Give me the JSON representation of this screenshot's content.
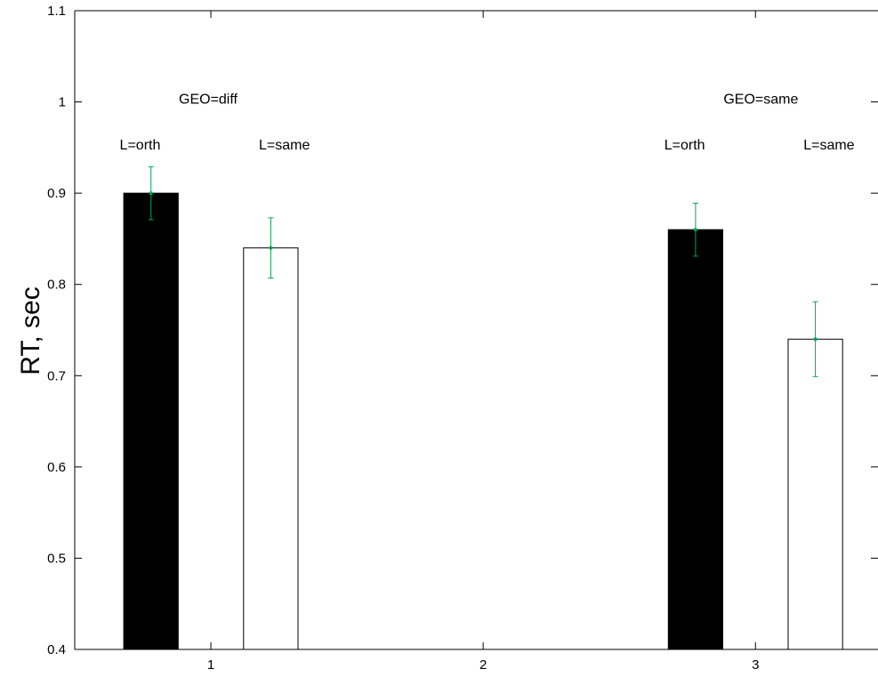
{
  "chart_data": {
    "type": "bar",
    "title": "",
    "xlabel": "",
    "ylabel": "RT, sec",
    "xlim": [
      0.5,
      3.45
    ],
    "ylim": [
      0.4,
      1.1
    ],
    "xticks": [
      1,
      2,
      3
    ],
    "yticks": [
      0.4,
      0.5,
      0.6,
      0.7,
      0.8,
      0.9,
      1,
      1.1
    ],
    "grid": false,
    "bars": [
      {
        "x": 0.78,
        "width": 0.2,
        "value": 0.9,
        "error": 0.029,
        "fill": "#000000"
      },
      {
        "x": 1.22,
        "width": 0.2,
        "value": 0.84,
        "error": 0.033,
        "fill": "#ffffff"
      },
      {
        "x": 2.78,
        "width": 0.2,
        "value": 0.86,
        "error": 0.029,
        "fill": "#000000"
      },
      {
        "x": 3.22,
        "width": 0.2,
        "value": 0.74,
        "error": 0.041,
        "fill": "#ffffff"
      }
    ],
    "annotations": [
      {
        "text": "GEO=diff",
        "x": 0.99,
        "y": 0.998
      },
      {
        "text": "L=orth",
        "x": 0.74,
        "y": 0.948
      },
      {
        "text": "L=same",
        "x": 1.27,
        "y": 0.948
      },
      {
        "text": "GEO=same",
        "x": 3.02,
        "y": 0.998
      },
      {
        "text": "L=orth",
        "x": 2.74,
        "y": 0.948
      },
      {
        "text": "L=same",
        "x": 3.27,
        "y": 0.948
      }
    ],
    "colors": {
      "error_bar": "#00a651",
      "axis": "#000000"
    }
  }
}
